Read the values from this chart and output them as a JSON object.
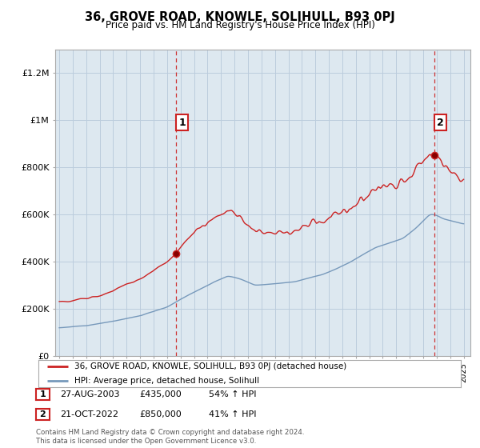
{
  "title": "36, GROVE ROAD, KNOWLE, SOLIHULL, B93 0PJ",
  "subtitle": "Price paid vs. HM Land Registry's House Price Index (HPI)",
  "ylabel_ticks": [
    "£0",
    "£200K",
    "£400K",
    "£600K",
    "£800K",
    "£1M",
    "£1.2M"
  ],
  "ylim": [
    0,
    1300000
  ],
  "yticks": [
    0,
    200000,
    400000,
    600000,
    800000,
    1000000,
    1200000
  ],
  "xlim_start": 1994.7,
  "xlim_end": 2025.5,
  "red_color": "#cc2222",
  "blue_color": "#7799bb",
  "bg_fill": "#dde8f0",
  "vline_color": "#cc2222",
  "sale1_x": 2003.65,
  "sale1_y": 435000,
  "sale2_x": 2022.8,
  "sale2_y": 850000,
  "legend_label_red": "36, GROVE ROAD, KNOWLE, SOLIHULL, B93 0PJ (detached house)",
  "legend_label_blue": "HPI: Average price, detached house, Solihull",
  "annotation1": "1",
  "annotation2": "2",
  "table_data": [
    [
      "1",
      "27-AUG-2003",
      "£435,000",
      "54% ↑ HPI"
    ],
    [
      "2",
      "21-OCT-2022",
      "£850,000",
      "41% ↑ HPI"
    ]
  ],
  "footer": "Contains HM Land Registry data © Crown copyright and database right 2024.\nThis data is licensed under the Open Government Licence v3.0.",
  "background_color": "#ffffff",
  "grid_color": "#bbccdd"
}
